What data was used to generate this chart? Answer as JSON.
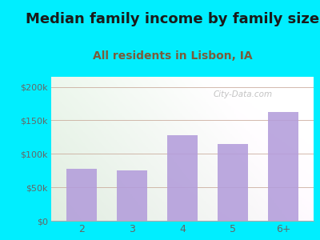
{
  "title": "Median family income by family size",
  "subtitle": "All residents in Lisbon, IA",
  "categories": [
    "2",
    "3",
    "4",
    "5",
    "6+"
  ],
  "values": [
    78000,
    75000,
    128000,
    115000,
    163000
  ],
  "bar_color": "#b39ddb",
  "title_fontsize": 13,
  "subtitle_fontsize": 10,
  "subtitle_color": "#7a5c3a",
  "title_color": "#1a1a1a",
  "ylabel_ticks": [
    0,
    50000,
    100000,
    150000,
    200000
  ],
  "ylabel_labels": [
    "$0",
    "$50k",
    "$100k",
    "$150k",
    "$200k"
  ],
  "ylim": [
    0,
    215000
  ],
  "background_outer": "#00eeff",
  "grid_color": "#c8a898",
  "watermark": "City-Data.com",
  "tick_color": "#666666",
  "axis_color": "#aaaaaa",
  "bar_width": 0.6
}
